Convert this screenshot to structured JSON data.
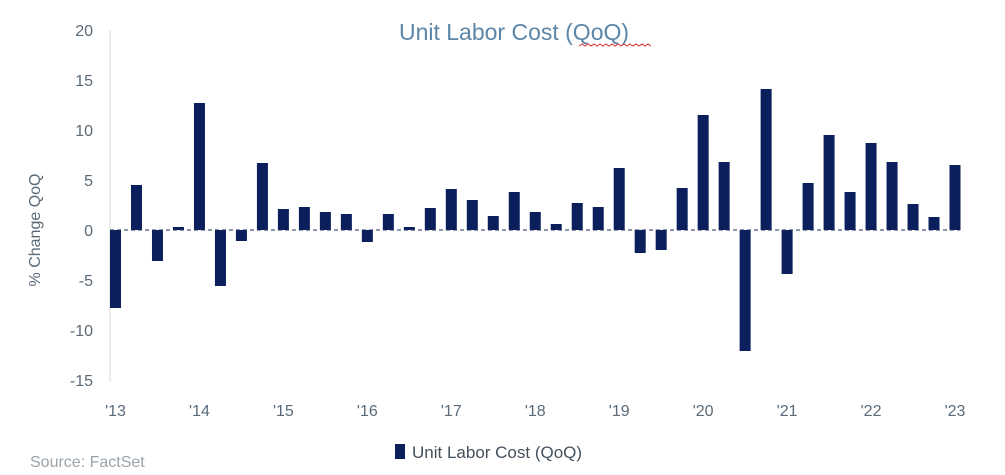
{
  "chart_data": {
    "type": "bar",
    "title": "Unit Labor Cost (QoQ)",
    "ylabel": "% Change QoQ",
    "xlabel": "",
    "ylim": [
      -15,
      20
    ],
    "yticks": [
      20,
      15,
      10,
      5,
      0,
      -5,
      -10,
      -15
    ],
    "xtick_labels": [
      "'13",
      "'14",
      "'15",
      "'16",
      "'17",
      "'18",
      "'19",
      "'20",
      "'21",
      "'22",
      "'23"
    ],
    "series": [
      {
        "name": "Unit Labor Cost (QoQ)",
        "color": "#0a1f5c",
        "values": [
          -7.8,
          4.5,
          -3.1,
          0.3,
          12.7,
          -5.6,
          -1.1,
          6.7,
          2.1,
          2.3,
          1.8,
          1.6,
          -1.2,
          1.6,
          0.3,
          2.2,
          4.1,
          3.0,
          1.4,
          3.8,
          1.8,
          0.6,
          2.7,
          2.3,
          6.2,
          -2.3,
          -2.0,
          4.2,
          11.5,
          6.8,
          -12.1,
          14.1,
          -4.4,
          4.7,
          9.5,
          3.8,
          8.7,
          6.8,
          2.6,
          1.3,
          6.5
        ]
      }
    ],
    "grid": false,
    "legend_position": "bottom"
  },
  "source": "Source: FactSet"
}
